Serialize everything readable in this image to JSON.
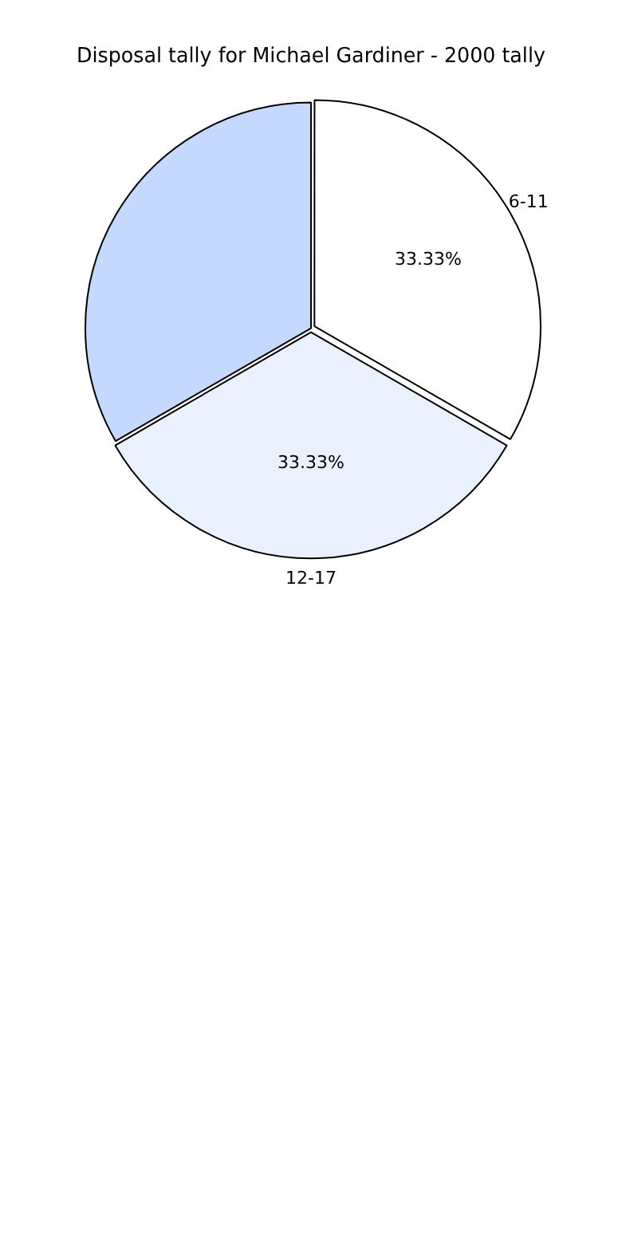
{
  "chart_data": {
    "type": "pie",
    "title": "Disposal tally for Michael Gardiner - 2000 tally",
    "categories": [
      "6-11",
      "12-17",
      null
    ],
    "values": [
      33.33,
      33.33,
      33.33
    ],
    "value_labels": [
      "33.33%",
      "33.33%",
      null
    ],
    "colors": [
      "#ffffff",
      "#eaf1fe",
      "#c5d9fe"
    ],
    "legend": false
  }
}
